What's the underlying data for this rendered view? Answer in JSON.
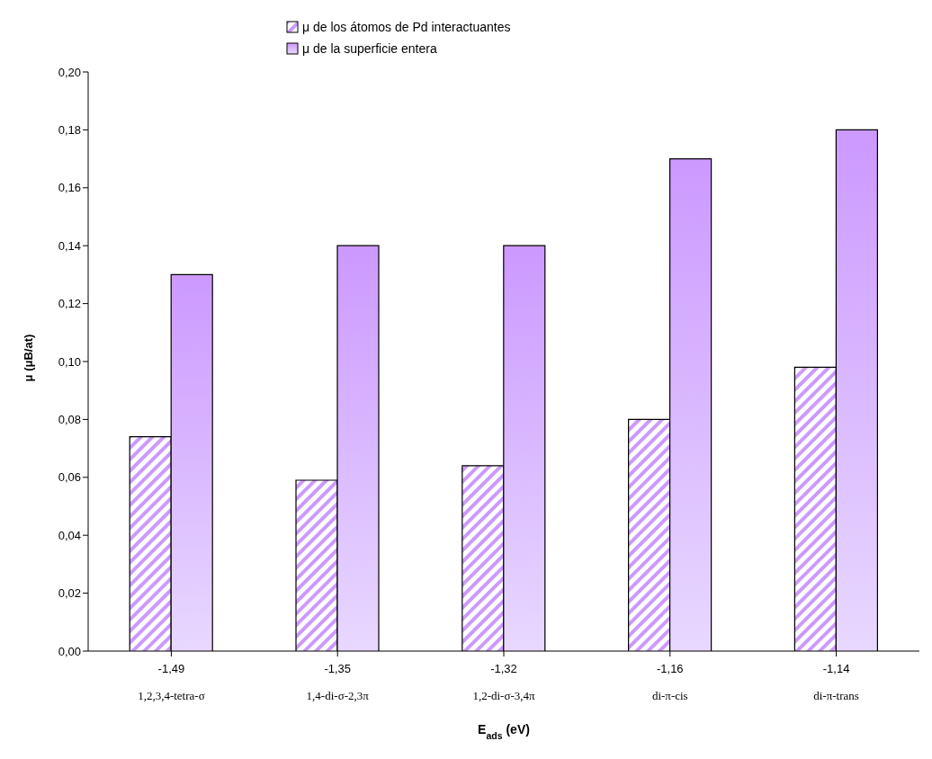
{
  "chart_data": {
    "type": "bar",
    "categories": [
      "-1,49\n1,2,3,4-tetra-σ",
      "-1,35\n1,4-di-σ-2,3π",
      "-1,32\n1,2-di-σ-3,4π",
      "-1,16\ndi-π-cis",
      "-1,14\ndi-π-trans"
    ],
    "series": [
      {
        "name": "μ de los átomos de Pd interactuantes",
        "color": "#cc99ff",
        "values": [
          0.074,
          0.059,
          0.064,
          0.08,
          0.098
        ]
      },
      {
        "name": "μ de la superficie entera",
        "color": "#cc99ff",
        "values": [
          0.13,
          0.14,
          0.14,
          0.17,
          0.18
        ]
      }
    ],
    "xlabel": "E$_{ads}$ (eV)",
    "ylabel": "μ (μB/at)",
    "ylim": [
      0,
      0.2
    ],
    "yticks": [
      {
        "value": 0,
        "label": "0,00"
      },
      {
        "value": 0.02,
        "label": "0,02"
      },
      {
        "value": 0.04,
        "label": "0,04"
      },
      {
        "value": 0.06,
        "label": "0,06"
      },
      {
        "value": 0.08,
        "label": "0,08"
      },
      {
        "value": 0.1,
        "label": "0,10"
      },
      {
        "value": 0.12,
        "label": "0,12"
      },
      {
        "value": 0.14,
        "label": "0,14"
      },
      {
        "value": 0.16,
        "label": "0,16"
      },
      {
        "value": 0.18,
        "label": "0,18"
      },
      {
        "value": 0.2,
        "label": "0,20"
      }
    ],
    "grid": false,
    "legend": "top"
  }
}
